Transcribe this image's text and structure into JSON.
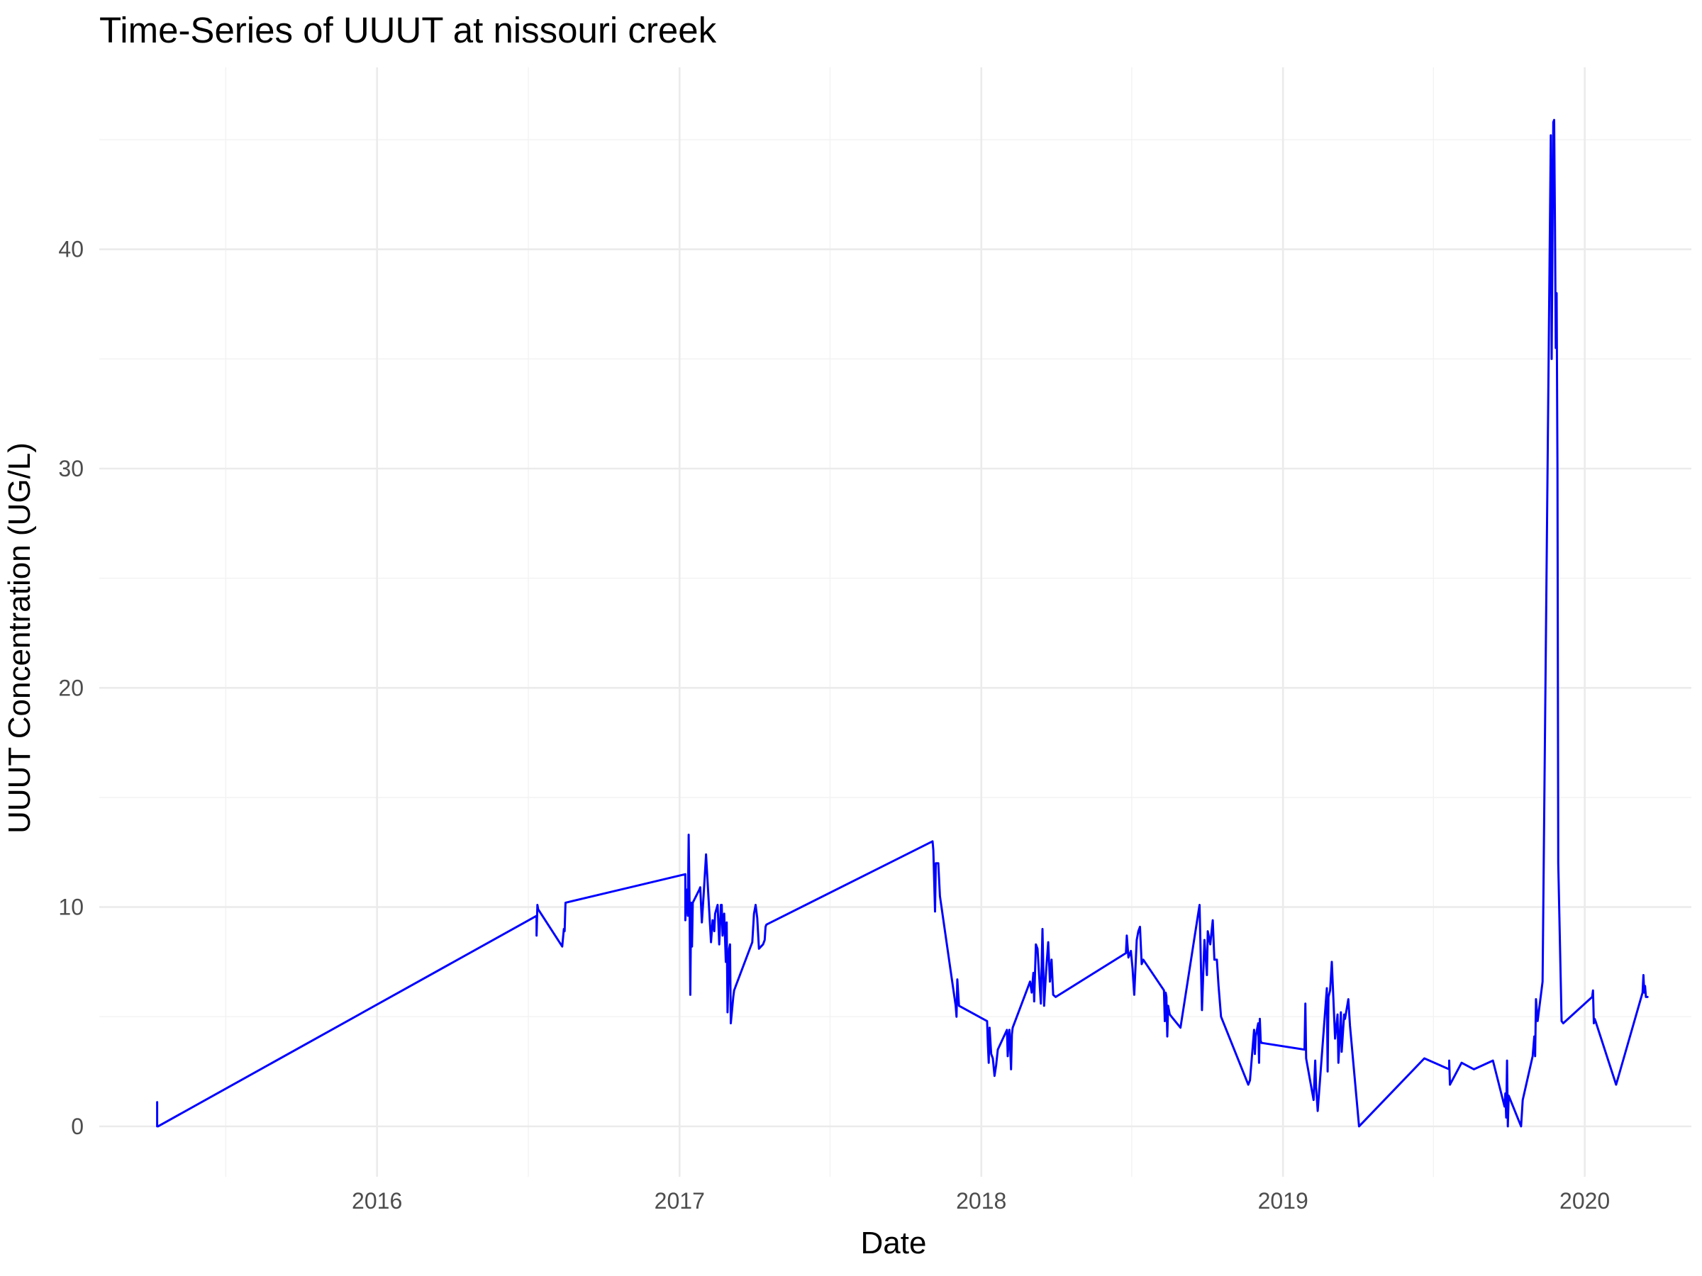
{
  "chart_data": {
    "type": "line",
    "title": "Time-Series of UUUT at nissouri creek",
    "xlabel": "Date",
    "ylabel": "UUUT Concentration (UG/L)",
    "x_ticks": [
      "2016",
      "2017",
      "2018",
      "2019",
      "2020"
    ],
    "y_ticks": [
      0,
      10,
      20,
      30,
      40
    ],
    "xlim": [
      "2015-01-30",
      "2020-05-09"
    ],
    "ylim": [
      -2.3,
      48.3
    ],
    "grid": true,
    "legend": "none",
    "series": [
      {
        "color": "#0000ff",
        "x": [
          "2015-04-10",
          "2015-04-10",
          "2015-04-11",
          "2016-07-12",
          "2016-07-12",
          "2016-07-13",
          "2016-07-14",
          "2016-08-12",
          "2016-08-14",
          "2016-08-15",
          "2016-08-16",
          "2017-01-08",
          "2017-01-08",
          "2017-01-09",
          "2017-01-11",
          "2017-01-12",
          "2017-01-13",
          "2017-01-14",
          "2017-01-15",
          "2017-01-16",
          "2017-01-17",
          "2017-01-25",
          "2017-01-26",
          "2017-01-28",
          "2017-01-30",
          "2017-02-02",
          "2017-02-08",
          "2017-02-10",
          "2017-02-12",
          "2017-02-13",
          "2017-02-16",
          "2017-02-18",
          "2017-02-20",
          "2017-02-21",
          "2017-02-22",
          "2017-02-24",
          "2017-02-26",
          "2017-02-27",
          "2017-02-28",
          "2017-03-02",
          "2017-03-03",
          "2017-03-04",
          "2017-03-07",
          "2017-03-08",
          "2017-03-09",
          "2017-03-10",
          "2017-03-30",
          "2017-04-01",
          "2017-04-03",
          "2017-04-05",
          "2017-04-07",
          "2017-04-12",
          "2017-04-14",
          "2017-04-15",
          "2017-04-16",
          "2017-11-03",
          "2017-11-04",
          "2017-11-06",
          "2017-11-07",
          "2017-11-08",
          "2017-11-10",
          "2017-11-12",
          "2017-12-01",
          "2017-12-02",
          "2017-12-03",
          "2017-12-05",
          "2018-01-08",
          "2018-01-09",
          "2018-01-10",
          "2018-01-11",
          "2018-01-13",
          "2018-01-15",
          "2018-01-17",
          "2018-01-19",
          "2018-01-21",
          "2018-02-01",
          "2018-02-02",
          "2018-02-03",
          "2018-02-04",
          "2018-02-06",
          "2018-02-07",
          "2018-02-08",
          "2018-03-01",
          "2018-03-03",
          "2018-03-05",
          "2018-03-06",
          "2018-03-08",
          "2018-03-10",
          "2018-03-14",
          "2018-03-16",
          "2018-03-18",
          "2018-03-20",
          "2018-03-21",
          "2018-03-23",
          "2018-03-25",
          "2018-03-27",
          "2018-03-29",
          "2018-04-01",
          "2018-06-25",
          "2018-06-26",
          "2018-06-28",
          "2018-07-01",
          "2018-07-03",
          "2018-07-05",
          "2018-07-08",
          "2018-07-10",
          "2018-07-12",
          "2018-07-14",
          "2018-07-16",
          "2018-08-10",
          "2018-08-11",
          "2018-08-12",
          "2018-08-13",
          "2018-08-14",
          "2018-08-15",
          "2018-08-16",
          "2018-08-17",
          "2018-08-30",
          "2018-09-22",
          "2018-09-25",
          "2018-09-28",
          "2018-10-01",
          "2018-10-02",
          "2018-10-05",
          "2018-10-08",
          "2018-10-10",
          "2018-10-13",
          "2018-10-15",
          "2018-10-18",
          "2018-11-20",
          "2018-11-22",
          "2018-11-27",
          "2018-11-28",
          "2018-11-29",
          "2018-12-02",
          "2018-12-03",
          "2018-12-04",
          "2018-12-05",
          "2018-12-06",
          "2018-12-07",
          "2019-01-27",
          "2019-01-28",
          "2019-01-29",
          "2019-02-07",
          "2019-02-09",
          "2019-02-10",
          "2019-02-12",
          "2019-02-23",
          "2019-02-24",
          "2019-02-25",
          "2019-02-27",
          "2019-03-01",
          "2019-03-05",
          "2019-03-08",
          "2019-03-09",
          "2019-03-12",
          "2019-03-13",
          "2019-03-16",
          "2019-03-17",
          "2019-03-21",
          "2019-03-23",
          "2019-04-03",
          "2019-06-21",
          "2019-07-21",
          "2019-07-21",
          "2019-07-22",
          "2019-08-05",
          "2019-08-20",
          "2019-09-12",
          "2019-09-26",
          "2019-09-27",
          "2019-09-28",
          "2019-09-29",
          "2019-09-30",
          "2019-10-01",
          "2019-10-16",
          "2019-10-18",
          "2019-10-30",
          "2019-11-01",
          "2019-11-02",
          "2019-11-03",
          "2019-11-05",
          "2019-11-08",
          "2019-11-11",
          "2019-11-21",
          "2019-11-22",
          "2019-11-24",
          "2019-11-25",
          "2019-11-26",
          "2019-11-27",
          "2019-11-28",
          "2019-11-29",
          "2019-11-30",
          "2019-12-04",
          "2019-12-06",
          "2020-01-10",
          "2020-01-11",
          "2020-01-12",
          "2020-01-13",
          "2020-01-14",
          "2020-02-08",
          "2020-03-11",
          "2020-03-12",
          "2020-03-13",
          "2020-03-14",
          "2020-03-15",
          "2020-03-17"
        ],
        "y": [
          1.1,
          0.0,
          0.0,
          9.6,
          8.7,
          10.1,
          9.9,
          8.2,
          9.0,
          8.9,
          10.2,
          11.5,
          9.4,
          10.8,
          9.6,
          13.3,
          10.3,
          6.0,
          10.2,
          8.2,
          10.2,
          10.8,
          10.9,
          9.3,
          10.5,
          12.4,
          8.4,
          9.4,
          8.9,
          9.7,
          10.1,
          8.3,
          10.1,
          10.1,
          8.7,
          9.7,
          7.5,
          9.3,
          5.2,
          8.1,
          8.3,
          4.7,
          5.9,
          6.2,
          6.3,
          6.4,
          8.4,
          9.7,
          10.1,
          9.5,
          8.1,
          8.3,
          8.5,
          9.1,
          9.2,
          13.0,
          12.6,
          9.8,
          12.0,
          12.0,
          12.0,
          10.5,
          5.5,
          5.0,
          6.7,
          5.5,
          4.8,
          3.7,
          2.9,
          4.5,
          3.3,
          3.1,
          2.3,
          2.8,
          3.5,
          4.4,
          3.2,
          3.9,
          4.4,
          2.6,
          4.2,
          4.5,
          6.6,
          6.1,
          7.0,
          5.7,
          8.3,
          8.1,
          5.6,
          9.0,
          5.5,
          6.8,
          7.4,
          8.4,
          6.6,
          7.6,
          6.0,
          5.9,
          7.9,
          8.7,
          7.7,
          8.0,
          7.2,
          6.0,
          8.5,
          8.9,
          9.1,
          7.4,
          7.6,
          6.2,
          4.8,
          6.1,
          5.9,
          4.1,
          5.5,
          5.3,
          5.1,
          4.5,
          10.1,
          5.3,
          8.5,
          6.9,
          8.9,
          8.3,
          9.4,
          7.6,
          7.6,
          6.4,
          5.0,
          1.9,
          2.1,
          4.4,
          3.3,
          4.1,
          4.7,
          2.9,
          4.9,
          3.9,
          3.8,
          3.8,
          3.5,
          5.6,
          3.1,
          1.2,
          3.0,
          1.8,
          0.7,
          6.3,
          2.5,
          5.9,
          6.2,
          7.5,
          4.0,
          5.1,
          2.9,
          5.2,
          3.4,
          5.1,
          4.9,
          5.8,
          4.6,
          0.0,
          3.1,
          2.6,
          3.0,
          1.9,
          2.9,
          2.6,
          3.0,
          0.9,
          1.5,
          0.4,
          3.0,
          0.0,
          1.4,
          0.0,
          1.2,
          3.2,
          4.1,
          3.2,
          5.8,
          4.8,
          5.7,
          6.6,
          45.2,
          35.0,
          45.8,
          45.9,
          41.0,
          35.5,
          38.0,
          30.0,
          12.0,
          4.8,
          4.7,
          5.9,
          6.2,
          4.7,
          4.9,
          4.8,
          1.9,
          6.1,
          6.9,
          6.1,
          6.4,
          5.9,
          5.9
        ]
      }
    ]
  }
}
